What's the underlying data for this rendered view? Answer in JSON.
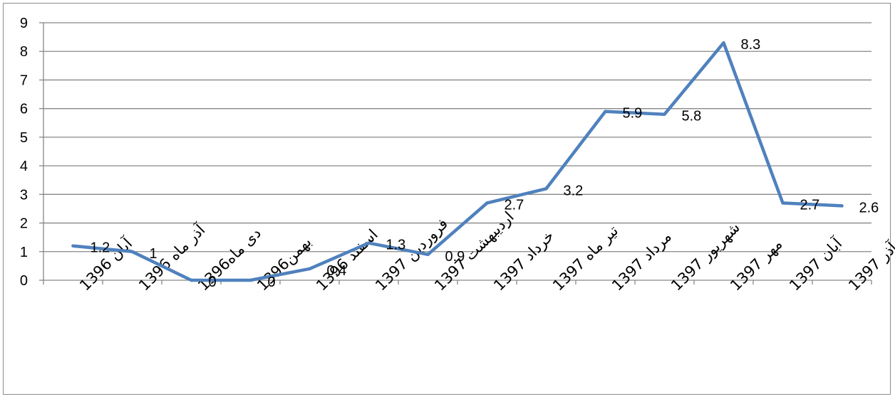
{
  "chart_data": {
    "type": "line",
    "categories": [
      "آبان 1396",
      "آذر ماه 1396",
      "دی ماه1396",
      "بهمن1396",
      "اسفند 1396",
      "فروردین 1397",
      "اردیبهشت 1397",
      "خرداد 1397",
      "تیر ماه 1397",
      "مرداد 1397",
      "شهریور 1397",
      "مهر 1397",
      "آبان 1397",
      "آذر 1397"
    ],
    "series": [
      {
        "values": [
          1.2,
          1,
          0,
          0,
          0.4,
          1.3,
          0.9,
          2.7,
          3.2,
          5.9,
          5.8,
          8.3,
          2.7,
          2.6
        ],
        "data_labels": [
          "1.2",
          "1",
          "0",
          "0",
          "0.4",
          "1.3",
          "0.9",
          "2.7",
          "3.2",
          "5.9",
          "5.8",
          "8.3",
          "2.7",
          "2.6"
        ],
        "color": "#4f81bd"
      }
    ],
    "y_ticks": [
      "0",
      "1",
      "2",
      "3",
      "4",
      "5",
      "6",
      "7",
      "8",
      "9"
    ],
    "ylim": [
      0,
      9
    ],
    "grid": true,
    "title": "",
    "xlabel": "",
    "ylabel": "",
    "colors": {
      "line": "#4f81bd",
      "grid": "#878787",
      "axis": "#878787"
    }
  }
}
